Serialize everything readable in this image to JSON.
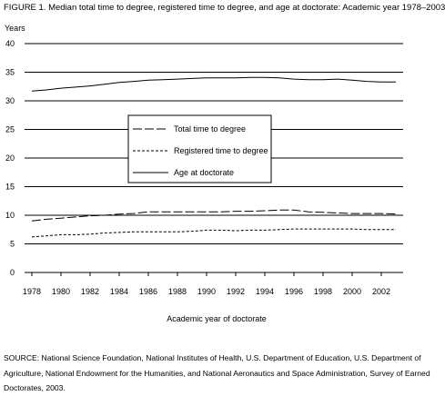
{
  "figure_title": "FIGURE 1.  Median total time to degree, registered time to degree, and age at doctorate: Academic year 1978–2003",
  "source_note": "SOURCE:  National Science Foundation, National Institutes of Health, U.S. Department of Education, U.S. Department of Agriculture, National Endowment for the Humanities, and National Aeronautics and Space Administration, Survey of Earned Doctorates, 2003.",
  "chart_data": {
    "type": "line",
    "title": "",
    "ylabel": "Years",
    "xlabel": "Academic year of doctorate",
    "ylim": [
      0,
      40
    ],
    "xlim": [
      1978,
      2003
    ],
    "y_ticks": [
      0,
      5,
      10,
      15,
      20,
      25,
      30,
      35,
      40
    ],
    "x_ticks": [
      1978,
      1980,
      1982,
      1984,
      1986,
      1988,
      1990,
      1992,
      1994,
      1996,
      1998,
      2000,
      2002
    ],
    "x_tick_labels": [
      "1978",
      "1980",
      "1982",
      "1984",
      "1986",
      "1988",
      "1990",
      "1992",
      "1994",
      "1996",
      "1998",
      "2000",
      "2002"
    ],
    "y_tick_labels": [
      "0",
      "5",
      "10",
      "15",
      "20",
      "25",
      "30",
      "35",
      "40"
    ],
    "grid": "horizontal",
    "legend_position": "center",
    "x": [
      1978,
      1979,
      1980,
      1981,
      1982,
      1983,
      1984,
      1985,
      1986,
      1987,
      1988,
      1989,
      1990,
      1991,
      1992,
      1993,
      1994,
      1995,
      1996,
      1997,
      1998,
      1999,
      2000,
      2001,
      2002,
      2003
    ],
    "series": [
      {
        "name": "Total time to degree",
        "dash": "long-dash",
        "values": [
          9.0,
          9.3,
          9.5,
          9.7,
          9.9,
          10.0,
          10.2,
          10.3,
          10.6,
          10.6,
          10.6,
          10.6,
          10.6,
          10.6,
          10.7,
          10.7,
          10.8,
          10.9,
          10.9,
          10.6,
          10.5,
          10.4,
          10.3,
          10.3,
          10.3,
          10.2
        ]
      },
      {
        "name": "Registered time to degree",
        "dash": "short-dash",
        "values": [
          6.2,
          6.4,
          6.6,
          6.6,
          6.7,
          6.9,
          7.0,
          7.1,
          7.1,
          7.1,
          7.1,
          7.2,
          7.4,
          7.4,
          7.3,
          7.4,
          7.4,
          7.5,
          7.6,
          7.6,
          7.6,
          7.6,
          7.6,
          7.5,
          7.5,
          7.5
        ]
      },
      {
        "name": "Age at doctorate",
        "dash": "solid",
        "values": [
          31.7,
          31.9,
          32.2,
          32.4,
          32.6,
          32.9,
          33.2,
          33.4,
          33.6,
          33.7,
          33.8,
          33.9,
          34.0,
          34.0,
          34.0,
          34.1,
          34.1,
          34.0,
          33.8,
          33.7,
          33.7,
          33.8,
          33.6,
          33.4,
          33.3,
          33.3
        ]
      }
    ]
  }
}
